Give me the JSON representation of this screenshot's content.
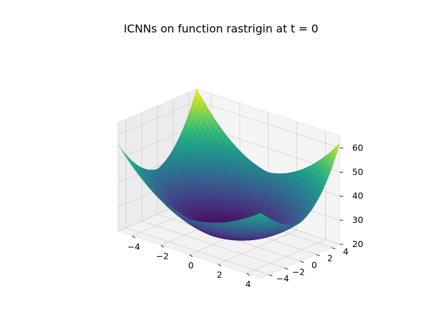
{
  "chart_data": {
    "type": "surface",
    "title": "ICNNs on function rastrigin at t = 0",
    "function": "rastrigin",
    "colormap": "viridis",
    "x": {
      "range": [
        -5,
        5
      ],
      "ticks": [
        -4,
        -2,
        0,
        2,
        4
      ],
      "tick_labels": [
        "−4",
        "−2",
        "0",
        "2",
        "4"
      ]
    },
    "y": {
      "range": [
        -5,
        5
      ],
      "ticks": [
        -4,
        -2,
        0,
        2,
        4
      ],
      "tick_labels": [
        "−4",
        "−2",
        "0",
        "2",
        "4"
      ]
    },
    "z": {
      "range": [
        20,
        65
      ],
      "ticks": [
        20,
        30,
        40,
        50,
        60
      ],
      "tick_labels": [
        "20",
        "30",
        "40",
        "50",
        "60"
      ]
    },
    "grid": true,
    "surface_description": "convex bowl approximating rastrigin; minimum near center",
    "corner_values": {
      "x_-5_y_-5": 56,
      "x_5_y_-5": 47,
      "x_5_y_5": 62,
      "x_-5_y_5": 65
    },
    "min_value": 21
  }
}
